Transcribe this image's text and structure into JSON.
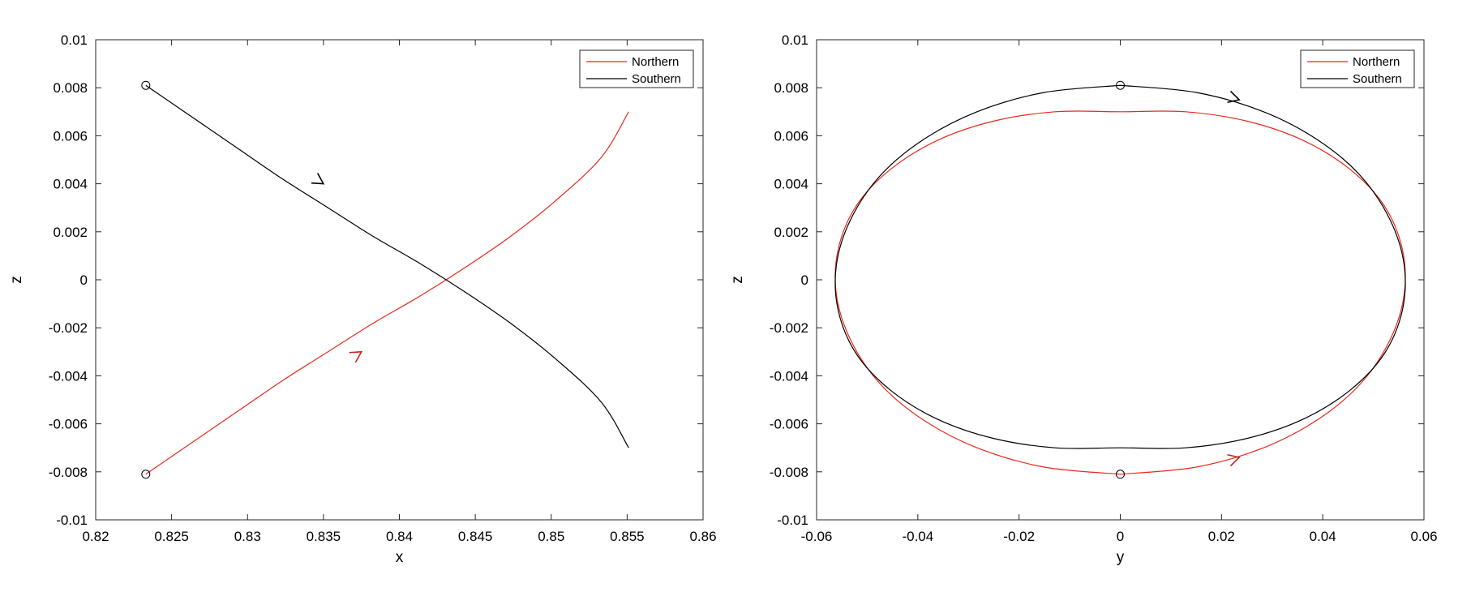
{
  "chart_data": [
    {
      "type": "line",
      "xlabel": "x",
      "ylabel": "z",
      "xlim": [
        0.82,
        0.86
      ],
      "ylim": [
        -0.01,
        0.01
      ],
      "xticks": [
        "0.82",
        "0.825",
        "0.83",
        "0.835",
        "0.84",
        "0.845",
        "0.85",
        "0.855",
        "0.86"
      ],
      "yticks": [
        "-0.01",
        "-0.008",
        "-0.006",
        "-0.004",
        "-0.002",
        "0",
        "0.002",
        "0.004",
        "0.006",
        "0.008",
        "0.01"
      ],
      "grid": false,
      "legend": "top-right",
      "series": [
        {
          "name": "Northern",
          "color": "#e8291c",
          "x": [
            0.8233,
            0.8263,
            0.8293,
            0.8323,
            0.8353,
            0.8383,
            0.8413,
            0.8443,
            0.8473,
            0.8503,
            0.8533,
            0.8551
          ],
          "y": [
            -0.0081,
            -0.0068,
            -0.0055,
            -0.0042,
            -0.003,
            -0.0018,
            -0.0007,
            0.0005,
            0.0018,
            0.0033,
            0.0051,
            0.007
          ],
          "start_marker": [
            0.8233,
            -0.0081
          ],
          "arrow": [
            0.8375,
            -0.003
          ]
        },
        {
          "name": "Southern",
          "color": "#000000",
          "x": [
            0.8233,
            0.8263,
            0.8293,
            0.8323,
            0.8353,
            0.8383,
            0.8413,
            0.8443,
            0.8473,
            0.8503,
            0.8533,
            0.8551
          ],
          "y": [
            0.0081,
            0.0068,
            0.0055,
            0.0042,
            0.003,
            0.0018,
            0.0007,
            -0.0005,
            -0.0018,
            -0.0033,
            -0.0051,
            -0.007
          ],
          "start_marker": [
            0.8233,
            0.0081
          ],
          "arrow": [
            0.835,
            0.004
          ]
        }
      ]
    },
    {
      "type": "line",
      "xlabel": "y",
      "ylabel": "z",
      "xlim": [
        -0.06,
        0.06
      ],
      "ylim": [
        -0.01,
        0.01
      ],
      "xticks": [
        "-0.06",
        "-0.04",
        "-0.02",
        "0",
        "0.02",
        "0.04",
        "0.06"
      ],
      "yticks": [
        "-0.01",
        "-0.008",
        "-0.006",
        "-0.004",
        "-0.002",
        "0",
        "0.002",
        "0.004",
        "0.006",
        "0.008",
        "0.01"
      ],
      "grid": false,
      "legend": "top-right",
      "series": [
        {
          "name": "Northern",
          "color": "#e8291c",
          "x": [
            0,
            0.0151,
            0.0283,
            0.0392,
            0.0476,
            0.0533,
            0.0561,
            0.0557,
            0.0521,
            0.0454,
            0.0362,
            0.0252,
            0.0129,
            0,
            -0.0129,
            -0.0252,
            -0.0362,
            -0.0454,
            -0.0521,
            -0.0557,
            -0.0561,
            -0.0533,
            -0.0476,
            -0.0392,
            -0.0283,
            -0.0151,
            0
          ],
          "y": [
            -0.0081,
            -0.0078,
            -0.007,
            -0.0058,
            -0.0043,
            -0.0025,
            -0.0006,
            0.0013,
            0.0031,
            0.0046,
            0.0058,
            0.0066,
            0.007,
            0.007,
            0.007,
            0.0066,
            0.0058,
            0.0046,
            0.0031,
            0.0013,
            -0.0006,
            -0.0025,
            -0.0043,
            -0.0058,
            -0.007,
            -0.0078,
            -0.0081
          ],
          "start_marker": [
            0,
            -0.0081
          ],
          "arrow": [
            0.0235,
            -0.0074
          ]
        },
        {
          "name": "Southern",
          "color": "#000000",
          "x": [
            0,
            0.0151,
            0.0283,
            0.0392,
            0.0476,
            0.0533,
            0.0561,
            0.0557,
            0.0521,
            0.0454,
            0.0362,
            0.0252,
            0.0129,
            0,
            -0.0129,
            -0.0252,
            -0.0362,
            -0.0454,
            -0.0521,
            -0.0557,
            -0.0561,
            -0.0533,
            -0.0476,
            -0.0392,
            -0.0283,
            -0.0151,
            0
          ],
          "y": [
            0.0081,
            0.0078,
            0.007,
            0.0058,
            0.0043,
            0.0025,
            0.0006,
            -0.0013,
            -0.0031,
            -0.0046,
            -0.0058,
            -0.0066,
            -0.007,
            -0.007,
            -0.007,
            -0.0066,
            -0.0058,
            -0.0046,
            -0.0031,
            -0.0013,
            0.0006,
            0.0025,
            0.0043,
            0.0058,
            0.007,
            0.0078,
            0.0081
          ],
          "start_marker": [
            0,
            0.0081
          ],
          "arrow": [
            0.0235,
            0.0075
          ]
        }
      ]
    }
  ]
}
